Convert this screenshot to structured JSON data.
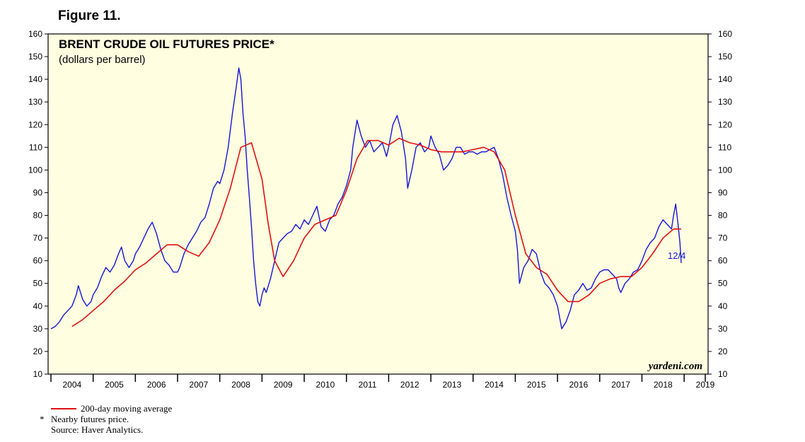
{
  "figure_label": "Figure 11.",
  "chart_data": {
    "type": "line",
    "title": "BRENT CRUDE OIL FUTURES PRICE*",
    "subtitle": "(dollars per barrel)",
    "ylim": [
      10,
      160
    ],
    "yticks": [
      10,
      20,
      30,
      40,
      50,
      60,
      70,
      80,
      90,
      100,
      110,
      120,
      130,
      140,
      150,
      160
    ],
    "ytick_labels": [
      "10",
      "20",
      "30",
      "40",
      "50",
      "60",
      "70",
      "80",
      "90",
      "100",
      "110",
      "120",
      "130",
      "140",
      "150",
      "160"
    ],
    "xlim": [
      2004.0,
      2019.5
    ],
    "xtick_labels": [
      "2004",
      "2005",
      "2006",
      "2007",
      "2008",
      "2009",
      "2010",
      "2011",
      "2012",
      "2013",
      "2014",
      "2015",
      "2016",
      "2017",
      "2018",
      "2019"
    ],
    "grid": false,
    "background_color": "#fffee0",
    "end_label": "12/4",
    "watermark": "yardeni.com",
    "series": [
      {
        "name": "Brent crude oil futures price",
        "color": "#1515d8",
        "x": [
          2004.0,
          2004.1,
          2004.2,
          2004.3,
          2004.4,
          2004.5,
          2004.6,
          2004.65,
          2004.75,
          2004.85,
          2004.95,
          2005.0,
          2005.1,
          2005.2,
          2005.3,
          2005.4,
          2005.5,
          2005.6,
          2005.67,
          2005.75,
          2005.85,
          2005.95,
          2006.0,
          2006.1,
          2006.2,
          2006.3,
          2006.4,
          2006.5,
          2006.6,
          2006.7,
          2006.8,
          2006.9,
          2007.0,
          2007.05,
          2007.15,
          2007.25,
          2007.35,
          2007.45,
          2007.55,
          2007.65,
          2007.75,
          2007.85,
          2007.95,
          2008.0,
          2008.1,
          2008.2,
          2008.3,
          2008.4,
          2008.45,
          2008.5,
          2008.55,
          2008.6,
          2008.65,
          2008.7,
          2008.75,
          2008.8,
          2008.85,
          2008.9,
          2008.95,
          2009.0,
          2009.05,
          2009.1,
          2009.2,
          2009.3,
          2009.4,
          2009.5,
          2009.6,
          2009.7,
          2009.8,
          2009.9,
          2010.0,
          2010.1,
          2010.2,
          2010.3,
          2010.4,
          2010.5,
          2010.6,
          2010.7,
          2010.8,
          2010.9,
          2011.0,
          2011.1,
          2011.15,
          2011.25,
          2011.35,
          2011.45,
          2011.55,
          2011.65,
          2011.75,
          2011.85,
          2011.95,
          2012.0,
          2012.1,
          2012.2,
          2012.3,
          2012.4,
          2012.45,
          2012.55,
          2012.65,
          2012.75,
          2012.85,
          2012.95,
          2013.0,
          2013.1,
          2013.2,
          2013.3,
          2013.4,
          2013.5,
          2013.6,
          2013.7,
          2013.8,
          2013.9,
          2014.0,
          2014.1,
          2014.2,
          2014.3,
          2014.4,
          2014.5,
          2014.6,
          2014.7,
          2014.8,
          2014.9,
          2015.0,
          2015.05,
          2015.1,
          2015.2,
          2015.3,
          2015.4,
          2015.5,
          2015.6,
          2015.7,
          2015.8,
          2015.9,
          2016.0,
          2016.05,
          2016.1,
          2016.2,
          2016.3,
          2016.4,
          2016.5,
          2016.6,
          2016.7,
          2016.8,
          2016.9,
          2017.0,
          2017.1,
          2017.2,
          2017.3,
          2017.4,
          2017.45,
          2017.5,
          2017.6,
          2017.7,
          2017.8,
          2017.9,
          2018.0,
          2018.1,
          2018.2,
          2018.3,
          2018.4,
          2018.5,
          2018.6,
          2018.7,
          2018.75,
          2018.8,
          2018.85,
          2018.9,
          2018.93
        ],
        "values": [
          30,
          31,
          33,
          36,
          38,
          40,
          45,
          49,
          43,
          40,
          42,
          45,
          48,
          53,
          57,
          55,
          58,
          63,
          66,
          60,
          57,
          60,
          63,
          66,
          70,
          74,
          77,
          72,
          65,
          60,
          58,
          55,
          55,
          57,
          63,
          67,
          70,
          73,
          77,
          79,
          85,
          92,
          95,
          94,
          100,
          110,
          125,
          138,
          145,
          140,
          125,
          115,
          100,
          88,
          75,
          60,
          50,
          42,
          40,
          45,
          48,
          46,
          52,
          60,
          68,
          70,
          72,
          73,
          76,
          74,
          78,
          76,
          80,
          84,
          75,
          73,
          78,
          80,
          85,
          88,
          93,
          100,
          110,
          122,
          115,
          110,
          113,
          108,
          110,
          112,
          106,
          110,
          120,
          124,
          117,
          105,
          92,
          100,
          110,
          112,
          108,
          110,
          115,
          110,
          107,
          100,
          102,
          105,
          110,
          110,
          107,
          108,
          108,
          107,
          108,
          108,
          109,
          110,
          105,
          98,
          88,
          80,
          73,
          65,
          50,
          57,
          60,
          65,
          63,
          55,
          50,
          48,
          45,
          40,
          35,
          30,
          33,
          38,
          45,
          47,
          50,
          47,
          48,
          52,
          55,
          56,
          56,
          54,
          52,
          48,
          46,
          50,
          52,
          55,
          56,
          60,
          65,
          68,
          70,
          75,
          78,
          76,
          74,
          80,
          85,
          77,
          68,
          59
        ]
      },
      {
        "name": "200-day moving average",
        "color": "#e01010",
        "x": [
          2004.5,
          2004.75,
          2005.0,
          2005.25,
          2005.5,
          2005.75,
          2006.0,
          2006.25,
          2006.5,
          2006.75,
          2007.0,
          2007.25,
          2007.5,
          2007.75,
          2008.0,
          2008.25,
          2008.5,
          2008.75,
          2009.0,
          2009.15,
          2009.3,
          2009.5,
          2009.75,
          2010.0,
          2010.25,
          2010.5,
          2010.75,
          2011.0,
          2011.25,
          2011.5,
          2011.75,
          2012.0,
          2012.25,
          2012.5,
          2012.75,
          2013.0,
          2013.25,
          2013.5,
          2013.75,
          2014.0,
          2014.25,
          2014.5,
          2014.75,
          2015.0,
          2015.25,
          2015.5,
          2015.75,
          2016.0,
          2016.25,
          2016.5,
          2016.75,
          2017.0,
          2017.25,
          2017.5,
          2017.75,
          2018.0,
          2018.25,
          2018.5,
          2018.75,
          2018.93
        ],
        "values": [
          31,
          34,
          38,
          42,
          47,
          51,
          56,
          59,
          63,
          67,
          67,
          64,
          62,
          68,
          78,
          92,
          110,
          112,
          96,
          76,
          60,
          53,
          60,
          70,
          76,
          78,
          80,
          91,
          105,
          113,
          113,
          111,
          114,
          112,
          111,
          109,
          108,
          108,
          108,
          109,
          110,
          108,
          100,
          80,
          63,
          57,
          54,
          47,
          42,
          42,
          45,
          50,
          52,
          53,
          53,
          57,
          63,
          70,
          74,
          74
        ]
      }
    ]
  },
  "legend": {
    "ma_label": "200-day moving average"
  },
  "notes": {
    "star": "*",
    "nearby": "Nearby futures price.",
    "source": "Source: Haver Analytics."
  }
}
